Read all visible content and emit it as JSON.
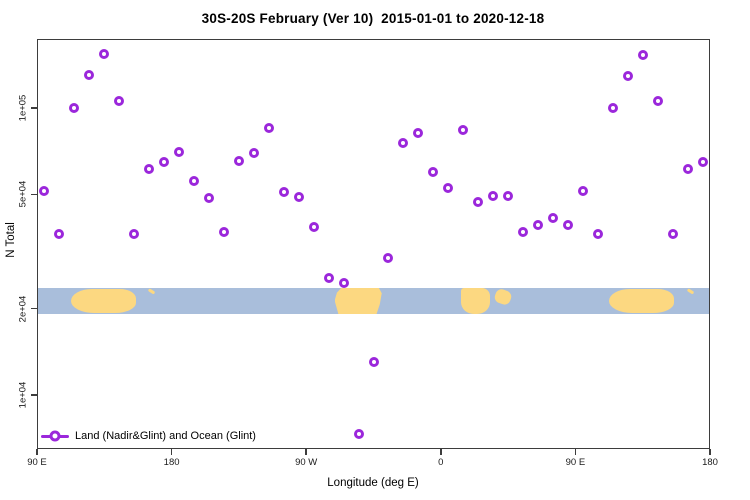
{
  "colors": {
    "marker": "#9b27db",
    "axis": "#3d3d3d",
    "ocean": "#a9bedb",
    "land": "#fcd881"
  },
  "chart_data": {
    "type": "scatter",
    "title": "30S-20S February (Ver 10)  2015-01-01 to 2020-12-18",
    "xlabel": "Longitude (deg E)",
    "ylabel": "N Total",
    "y_scale": "log",
    "x_range_deg": [
      90,
      540
    ],
    "ylim": [
      5500,
      200000
    ],
    "grid": false,
    "legend_position": "bottom-left",
    "x_ticks": [
      {
        "lon": 90,
        "label": "90 E"
      },
      {
        "lon": 180,
        "label": "180"
      },
      {
        "lon": 270,
        "label": "90 W"
      },
      {
        "lon": 360,
        "label": "0"
      },
      {
        "lon": 450,
        "label": "90 E"
      },
      {
        "lon": 540,
        "label": "180"
      }
    ],
    "y_ticks": [
      {
        "value": 100000,
        "label": "1e+05"
      },
      {
        "value": 50000,
        "label": "5e+04"
      },
      {
        "value": 20000,
        "label": "2e+04"
      },
      {
        "value": 10000,
        "label": "1e+04"
      }
    ],
    "legend": {
      "label": "Land (Nadir&Glint) and Ocean (Glint)"
    },
    "points": [
      {
        "lon": 95,
        "n": 51500
      },
      {
        "lon": 105,
        "n": 36500
      },
      {
        "lon": 115,
        "n": 100000
      },
      {
        "lon": 125,
        "n": 130000
      },
      {
        "lon": 135,
        "n": 154000
      },
      {
        "lon": 145,
        "n": 106000
      },
      {
        "lon": 155,
        "n": 36500
      },
      {
        "lon": 165,
        "n": 61500
      },
      {
        "lon": 175,
        "n": 65000
      },
      {
        "lon": 185,
        "n": 70500
      },
      {
        "lon": 195,
        "n": 55500
      },
      {
        "lon": 205,
        "n": 48500
      },
      {
        "lon": 215,
        "n": 37000
      },
      {
        "lon": 225,
        "n": 65500
      },
      {
        "lon": 235,
        "n": 69500
      },
      {
        "lon": 245,
        "n": 85500
      },
      {
        "lon": 255,
        "n": 51000
      },
      {
        "lon": 265,
        "n": 49000
      },
      {
        "lon": 275,
        "n": 38500
      },
      {
        "lon": 285,
        "n": 25500
      },
      {
        "lon": 295,
        "n": 24500
      },
      {
        "lon": 305,
        "n": 7300
      },
      {
        "lon": 315,
        "n": 13000
      },
      {
        "lon": 325,
        "n": 30000
      },
      {
        "lon": 335,
        "n": 75500
      },
      {
        "lon": 345,
        "n": 81500
      },
      {
        "lon": 355,
        "n": 60000
      },
      {
        "lon": 365,
        "n": 52500
      },
      {
        "lon": 375,
        "n": 84000
      },
      {
        "lon": 385,
        "n": 47000
      },
      {
        "lon": 395,
        "n": 49500
      },
      {
        "lon": 405,
        "n": 49500
      },
      {
        "lon": 415,
        "n": 37000
      },
      {
        "lon": 425,
        "n": 39000
      },
      {
        "lon": 435,
        "n": 41500
      },
      {
        "lon": 445,
        "n": 39000
      },
      {
        "lon": 455,
        "n": 51500
      },
      {
        "lon": 465,
        "n": 36500
      },
      {
        "lon": 475,
        "n": 100000
      },
      {
        "lon": 485,
        "n": 129000
      },
      {
        "lon": 495,
        "n": 153000
      },
      {
        "lon": 505,
        "n": 106000
      },
      {
        "lon": 515,
        "n": 36500
      },
      {
        "lon": 525,
        "n": 61500
      },
      {
        "lon": 535,
        "n": 65000
      }
    ]
  },
  "map_strip": {
    "description": "world coastline band 30S-20S",
    "land": [
      {
        "name": "australia",
        "kind": "blob",
        "lon_start": 112.5,
        "lon_end": 156
      },
      {
        "name": "new-caledonia",
        "kind": "islets",
        "lon_start": 164.5,
        "lon_end": 169.5
      },
      {
        "name": "south-america",
        "kind": "south-america",
        "lon_start": 289,
        "lon_end": 320.5
      },
      {
        "name": "africa",
        "kind": "africa",
        "lon_start": 373.5,
        "lon_end": 393
      },
      {
        "name": "madagascar",
        "kind": "madagascar",
        "lon_start": 396.5,
        "lon_end": 407.5
      },
      {
        "name": "australia-2",
        "kind": "blob",
        "lon_start": 472.5,
        "lon_end": 516
      },
      {
        "name": "new-caledonia-2",
        "kind": "islets",
        "lon_start": 524.5,
        "lon_end": 529.5
      }
    ]
  }
}
